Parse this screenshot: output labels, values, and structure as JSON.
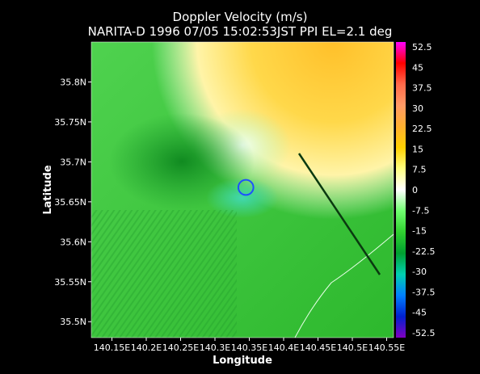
{
  "chart_data": {
    "type": "heatmap",
    "title": "Doppler Velocity (m/s)",
    "subtitle": "NARITA-D 1996 07/05 15:02:53JST PPI EL=2.1 deg",
    "xlabel": "Longitude",
    "ylabel": "Latitude",
    "x_ticks": [
      "140.15E",
      "140.2E",
      "140.25E",
      "140.3E",
      "140.35E",
      "140.4E",
      "140.45E",
      "140.5E",
      "140.55E"
    ],
    "x_tick_values": [
      140.15,
      140.2,
      140.25,
      140.3,
      140.35,
      140.4,
      140.45,
      140.5,
      140.55
    ],
    "y_ticks": [
      "35.8N",
      "35.75N",
      "35.7N",
      "35.65N",
      "35.6N",
      "35.55N",
      "35.5N"
    ],
    "y_tick_values": [
      35.8,
      35.75,
      35.7,
      35.65,
      35.6,
      35.55,
      35.5
    ],
    "xlim": [
      140.12,
      140.56
    ],
    "ylim": [
      35.48,
      35.85
    ],
    "colorbar": {
      "labels": [
        "52.5",
        "45",
        "37.5",
        "30",
        "22.5",
        "15",
        "7.5",
        "0",
        "-7.5",
        "-15",
        "-22.5",
        "-30",
        "-37.5",
        "-45",
        "-52.5"
      ],
      "values": [
        52.5,
        45,
        37.5,
        30,
        22.5,
        15,
        7.5,
        0,
        -7.5,
        -15,
        -22.5,
        -30,
        -37.5,
        -45,
        -52.5
      ],
      "colors": [
        "#ff00ff",
        "#ff0000",
        "#ff6a4a",
        "#ff9a66",
        "#ffb030",
        "#ffd000",
        "#ffff80",
        "#ffffff",
        "#70ff70",
        "#30d030",
        "#00a030",
        "#00d0b0",
        "#0080ff",
        "#0020d0",
        "#8000c0"
      ]
    },
    "features": [
      {
        "kind": "vortex-circle",
        "color": "#1e50ff",
        "lon": 140.345,
        "lat": 35.668,
        "radius_deg": 0.011
      }
    ]
  }
}
